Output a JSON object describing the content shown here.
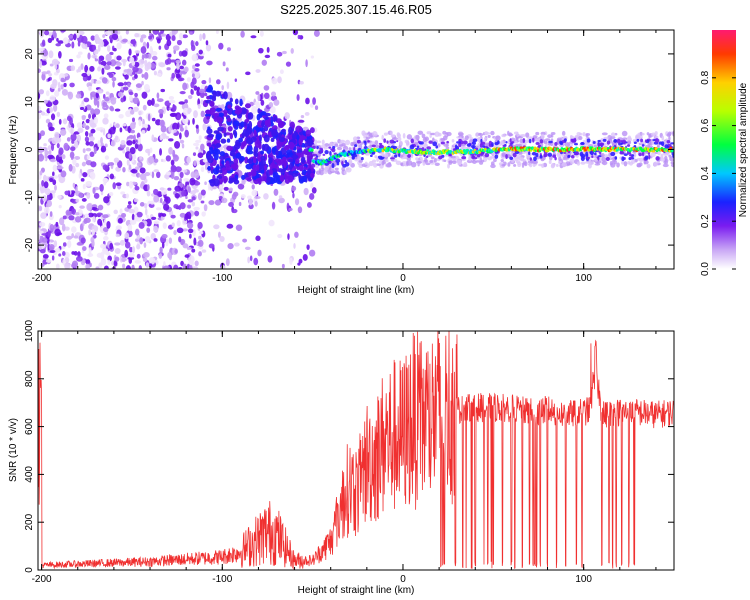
{
  "chart_data": [
    {
      "type": "heatmap",
      "title": "S225.2025.307.15.46.R05",
      "xlabel": "Height of straight line (km)",
      "ylabel": "Frequency (Hz)",
      "xlim": [
        -202,
        150
      ],
      "ylim": [
        -25,
        25
      ],
      "xticks": [
        "-200",
        "-100",
        "0",
        "100"
      ],
      "xtick_values": [
        -200,
        -100,
        0,
        100
      ],
      "yticks": [
        "20",
        "10",
        "0",
        "-10",
        "-20"
      ],
      "ytick_values": [
        20,
        10,
        0,
        -10,
        -20
      ],
      "colorbar": {
        "label": "Normalized spectral amplitude",
        "ticks": [
          "0.0",
          "0.2",
          "0.4",
          "0.6",
          "0.8"
        ],
        "tick_values": [
          0,
          0.2,
          0.4,
          0.6,
          0.8
        ],
        "range": [
          0,
          1
        ]
      },
      "frequency_track": [
        {
          "x": -50,
          "y": -2.5
        },
        {
          "x": -45,
          "y": -2.8
        },
        {
          "x": -40,
          "y": -2.0
        },
        {
          "x": -35,
          "y": -1.2
        },
        {
          "x": -30,
          "y": -0.8
        },
        {
          "x": -20,
          "y": -0.3
        },
        {
          "x": -10,
          "y": 0.0
        },
        {
          "x": 0,
          "y": -0.3
        },
        {
          "x": 20,
          "y": -0.6
        },
        {
          "x": 40,
          "y": -0.4
        },
        {
          "x": 60,
          "y": 0.1
        },
        {
          "x": 80,
          "y": 0.0
        },
        {
          "x": 100,
          "y": 0.1
        },
        {
          "x": 120,
          "y": 0.0
        },
        {
          "x": 150,
          "y": 0.0
        }
      ]
    },
    {
      "type": "line",
      "xlabel": "Height of straight line (km)",
      "ylabel": "SNR (10 * v/v)",
      "xlim": [
        -202,
        150
      ],
      "ylim": [
        0,
        1000
      ],
      "xticks": [
        "-200",
        "-100",
        "0",
        "100"
      ],
      "xtick_values": [
        -200,
        -100,
        0,
        100
      ],
      "yticks": [
        "0",
        "200",
        "400",
        "600",
        "800",
        "1000"
      ],
      "ytick_values": [
        0,
        200,
        400,
        600,
        800,
        1000
      ],
      "color": "#f03030",
      "x": [
        -200,
        -180,
        -160,
        -140,
        -120,
        -100,
        -90,
        -80,
        -75,
        -70,
        -60,
        -50,
        -40,
        -35,
        -30,
        -25,
        -20,
        -15,
        -10,
        -5,
        0,
        5,
        10,
        15,
        20,
        25,
        30,
        40,
        50,
        60,
        70,
        80,
        90,
        100,
        104,
        106,
        110,
        120,
        130,
        140,
        150
      ],
      "y": [
        20,
        25,
        30,
        35,
        45,
        55,
        75,
        130,
        160,
        150,
        40,
        40,
        120,
        250,
        350,
        330,
        450,
        470,
        540,
        560,
        560,
        630,
        620,
        640,
        650,
        660,
        670,
        680,
        680,
        680,
        660,
        670,
        650,
        660,
        670,
        900,
        650,
        660,
        660,
        650,
        660
      ],
      "dropouts": [
        21,
        22,
        23,
        29,
        33,
        35,
        38,
        40,
        45,
        47,
        49,
        50,
        55,
        60,
        62,
        66,
        70,
        72,
        73,
        74,
        76,
        80,
        85,
        90,
        96,
        99,
        110,
        114,
        116,
        118,
        121,
        125,
        128
      ]
    }
  ]
}
